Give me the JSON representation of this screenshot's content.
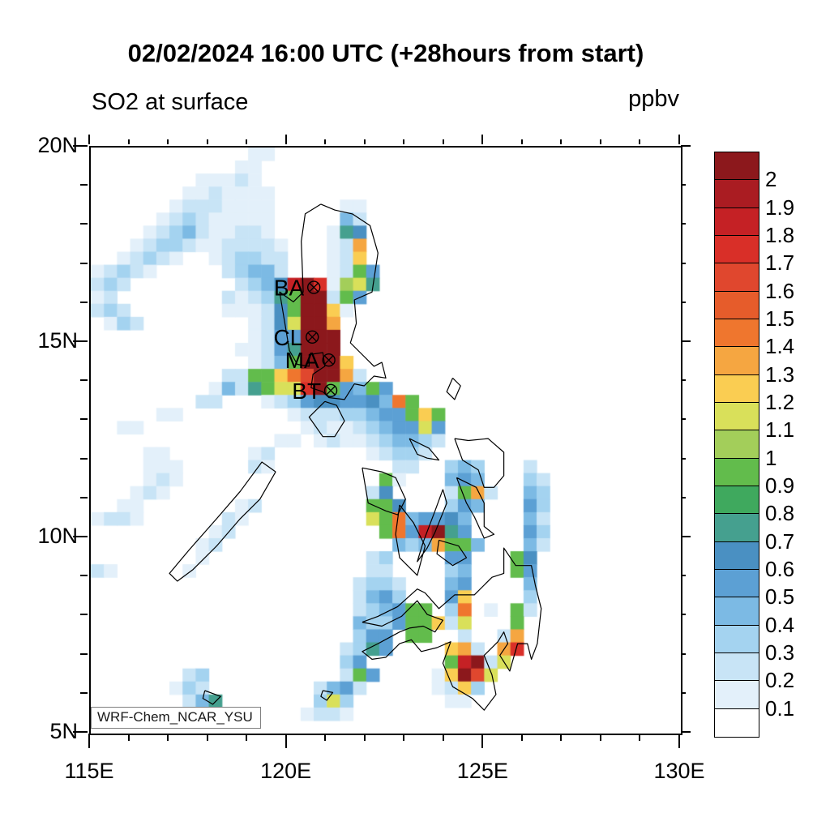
{
  "header": {
    "title": "02/02/2024 16:00 UTC (+28hours from start)",
    "subtitle_left": "SO2 at surface",
    "unit_label": "ppbv"
  },
  "footer": {
    "model_label": "WRF-Chem_NCAR_YSU"
  },
  "chart_data": {
    "type": "heatmap",
    "title": "02/02/2024 16:00 UTC (+28hours from start)",
    "variable": "SO2 at surface",
    "unit": "ppbv",
    "xlim": [
      115,
      130
    ],
    "ylim": [
      5,
      20
    ],
    "x_major_ticks": [
      115,
      120,
      125,
      130
    ],
    "x_tick_labels": [
      "115E",
      "120E",
      "125E",
      "130E"
    ],
    "x_minor_step": 1,
    "y_major_ticks": [
      20,
      15,
      10,
      5
    ],
    "y_tick_labels": [
      "20N",
      "15N",
      "10N",
      "5N"
    ],
    "y_minor_step": 1,
    "grid_lines": "off",
    "colorbar": {
      "position": "right",
      "tick_labels_top_to_bottom": [
        "2",
        "1.9",
        "1.8",
        "1.7",
        "1.6",
        "1.5",
        "1.4",
        "1.3",
        "1.2",
        "1.1",
        "1",
        "0.9",
        "0.8",
        "0.7",
        "0.6",
        "0.5",
        "0.4",
        "0.3",
        "0.2",
        "0.1"
      ],
      "colors_top_to_bottom": [
        "#8C181C",
        "#AA1C22",
        "#C52125",
        "#D92F28",
        "#E0472E",
        "#E65C2B",
        "#EF762E",
        "#F5A641",
        "#FACD52",
        "#D9E05A",
        "#A3CE5A",
        "#62BC4C",
        "#3FA95E",
        "#45A08F",
        "#4A90C2",
        "#5CA0D4",
        "#7CBAE4",
        "#A4D3F0",
        "#C8E4F6",
        "#E3F0FA",
        "#FFFFFF"
      ]
    },
    "grid": {
      "description": "SO2 concentration (ppbv) on a 1/3-degree grid; char encodes level: '.'=<0.1, '1'=0.1-0.2 ... 'K'=>2.0",
      "encoding": ".123456789ABCDEFGHIJK",
      "value_step": 0.1,
      "lon_min": 115,
      "lon_max": 130,
      "lat_min": 5,
      "lat_max": 20,
      "ncols": 45,
      "nrows": 45,
      "rows_north_to_south": [
        "............11...............................",
        "...........11................................",
        "........11121................................",
        ".......1121111...............................",
        "......12221111.....11........................",
        ".....123211111.....42........................",
        "....1234211221....176........................",
        "...123321122221...12D........................",
        "..12321..123322...12C........................",
        "12321.....23442...1295.......................",
        "232........2346IKH1AB7.......................",
        "12........212379KK295........................",
        "232.......111269KKC1.........................",
        ".132........126BKKD..........................",
        "............1255KKK..........................",
        "...........11257KKK..........................",
        "............1249KKKC.........................",
        "..........2299CEGKKD2........................",
        ".........14279BBHK95495......................",
        "........22...1235665564E9....................",
        ".....11........1222334559C9..................",
        "..11............121123455B5..................",
        "..............11.1211234432..................",
        "....11......12.......12332...................",
        "....111.....21.........22..343...2...........",
        "....121...............91...454...32..........",
        "...121...............26....29D2..43..........",
        "..11.......12........996...354...53..........",
        "1221......21.........B9E45564....42..........",
        ".........12...........9E5IK75....53..........",
        "........12.............434D994...42..........",
        "........1............23....55...96...........",
        "21.....1.............22....34...95...........",
        "....................2332...45....4...........",
        "....................2453...5C....3...........",
        "....................234599.3E.1.92...........",
        "....................433599C2B...9............",
        "....................355.99..2..2D............",
        "...................2375....CD2.DH............",
        "...................35......9IK2B.............",
        ".......23..........295....1CKGB..............",
        "......132........2452.....12C3...............",
        ".......247.......3B3.......11................",
        "......122.......1221.........................",
        "............................................."
      ]
    },
    "stations": [
      {
        "id": "BA",
        "lon": 120.67,
        "lat": 16.42
      },
      {
        "id": "CL",
        "lon": 120.63,
        "lat": 15.15
      },
      {
        "id": "MA",
        "lon": 121.05,
        "lat": 14.56
      },
      {
        "id": "BT",
        "lon": 121.1,
        "lat": 13.78
      }
    ],
    "annotations": [
      "WRF-Chem_NCAR_YSU"
    ]
  }
}
